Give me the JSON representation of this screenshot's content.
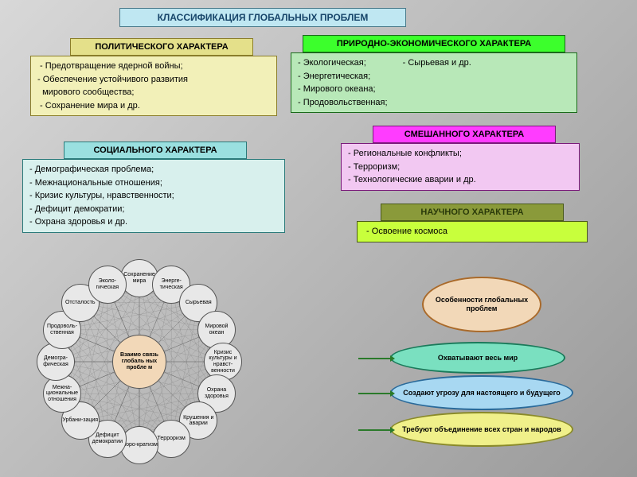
{
  "title": {
    "text": "КЛАССИФИКАЦИЯ ГЛОБАЛЬНЫХ ПРОБЛЕМ",
    "bg": "#bfe7f2",
    "border": "#4a7a8a",
    "color": "#17456a"
  },
  "political": {
    "header": "ПОЛИТИЧЕСКОГО ХАРАКТЕРА",
    "hbg": "#e4e08a",
    "hborder": "#8a7d2a",
    "body": " - Предотвращение ядерной войны;\n- Обеспечение устойчивого развития\n  мирового сообщества;\n - Сохранение мира и др.",
    "bbg": "#f2f0b8",
    "bborder": "#8a7d2a"
  },
  "nature": {
    "header": "ПРИРОДНО-ЭКОНОМИЧЕСКОГО ХАРАКТЕРА",
    "hbg": "#3cff2c",
    "hborder": "#1a6a1a",
    "body": "- Экологическая;               - Сырьевая и др.\n- Энергетическая;\n- Мирового океана;\n- Продовольственная;",
    "bbg": "#b8e8b8",
    "bborder": "#1a6a1a"
  },
  "social": {
    "header": "СОЦИАЛЬНОГО ХАРАКТЕРА",
    "hbg": "#9ae0e0",
    "hborder": "#2a7a7a",
    "body": "- Демографическая проблема;\n- Межнациональные отношения;\n- Кризис культуры, нравственности;\n- Дефицит демократии;\n- Охрана здоровья и др.",
    "bbg": "#d8f0edff",
    "bborder": "#2a7a7a"
  },
  "mixed": {
    "header": "СМЕШАННОГО ХАРАКТЕРА",
    "hbg": "#ff3cff",
    "hborder": "#7a1a7a",
    "body": "- Региональные конфликты;\n- Терроризм;\n- Технологические аварии и др.",
    "bbg": "#f2c8f2",
    "bborder": "#7a1a7a"
  },
  "science": {
    "header": "НАУЧНОГО ХАРАКТЕРА",
    "hbg": "#8a9a3a",
    "hborder": "#4a5a1a",
    "hcolor": "#2a3a0a",
    "body": " - Освоение космоса",
    "bbg": "#c8ff3c",
    "bborder": "#4a5a1a"
  },
  "features": {
    "center": {
      "text": "Особенности глобальных проблем",
      "bg": "#f2d8b8",
      "border": "#aa6a2a"
    },
    "e1": {
      "text": "Охватывают весь мир",
      "bg": "#7ae0c0",
      "border": "#1a7a5a"
    },
    "e2": {
      "text": "Создают угрозу для настоящего и будущего",
      "bg": "#a8d8f2",
      "border": "#2a6a9a"
    },
    "e3": {
      "text": "Требуют объединение всех стран и народов",
      "bg": "#f0f08a",
      "border": "#8a8a2a"
    }
  },
  "wheel": {
    "center": "Взаимо связь глобаль ных пробле м",
    "center_bg": "#f2d8b8",
    "node_bg": "#e8e8e8",
    "nodes": [
      "Сохранение мира",
      "Энерге-тическая",
      "Сырьевая",
      "Мировой океан",
      "Кризис культуры и нравст-венности",
      "Охрана здоровья",
      "Крушения и аварии",
      "Терроризм",
      "Бюро-кратизм",
      "Дефицит демократии",
      "Урбани-зация",
      "Межна-циональные отношения",
      "Демогра-фическая",
      "Продоволь-ственная",
      "Отсталость",
      "Эколо-гическая"
    ]
  }
}
